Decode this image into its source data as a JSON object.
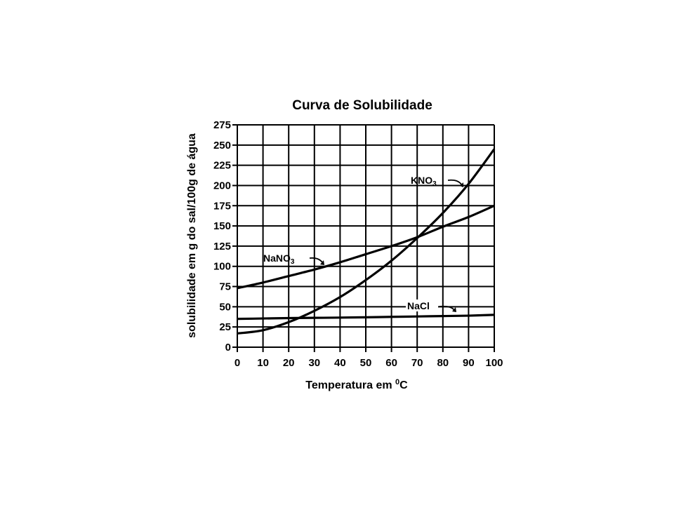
{
  "chart_data": {
    "type": "line",
    "title": "Curva de Solubilidade",
    "xlabel": "Temperatura em ⁰C",
    "xlabel_main": "Temperatura em ",
    "xlabel_sup": "0",
    "xlabel_unit": "C",
    "ylabel": "solubilidade em g do sal/100g de água",
    "x": [
      0,
      10,
      20,
      30,
      40,
      50,
      60,
      70,
      80,
      90,
      100
    ],
    "xticks": [
      "0",
      "10",
      "20",
      "30",
      "40",
      "50",
      "60",
      "70",
      "80",
      "90",
      "100"
    ],
    "yticks": [
      "0",
      "25",
      "50",
      "75",
      "100",
      "125",
      "150",
      "175",
      "200",
      "225",
      "250",
      "275"
    ],
    "xlim": [
      0,
      100
    ],
    "ylim": [
      0,
      275
    ],
    "grid": true,
    "legend": "inline labels with arrows",
    "series": [
      {
        "name": "KNO3",
        "label_main": "KNO",
        "label_sub": "3",
        "values": [
          17,
          21,
          31,
          45,
          62,
          83,
          107,
          135,
          166,
          202,
          245
        ]
      },
      {
        "name": "NaNO3",
        "label_main": "NaNO",
        "label_sub": "3",
        "values": [
          73,
          80,
          88,
          96,
          105,
          115,
          125,
          136,
          149,
          161,
          175
        ]
      },
      {
        "name": "NaCl",
        "label_main": "NaCl",
        "label_sub": "",
        "values": [
          35,
          35.5,
          36,
          36.3,
          36.6,
          37,
          37.5,
          38,
          38.5,
          39,
          40
        ]
      }
    ]
  }
}
